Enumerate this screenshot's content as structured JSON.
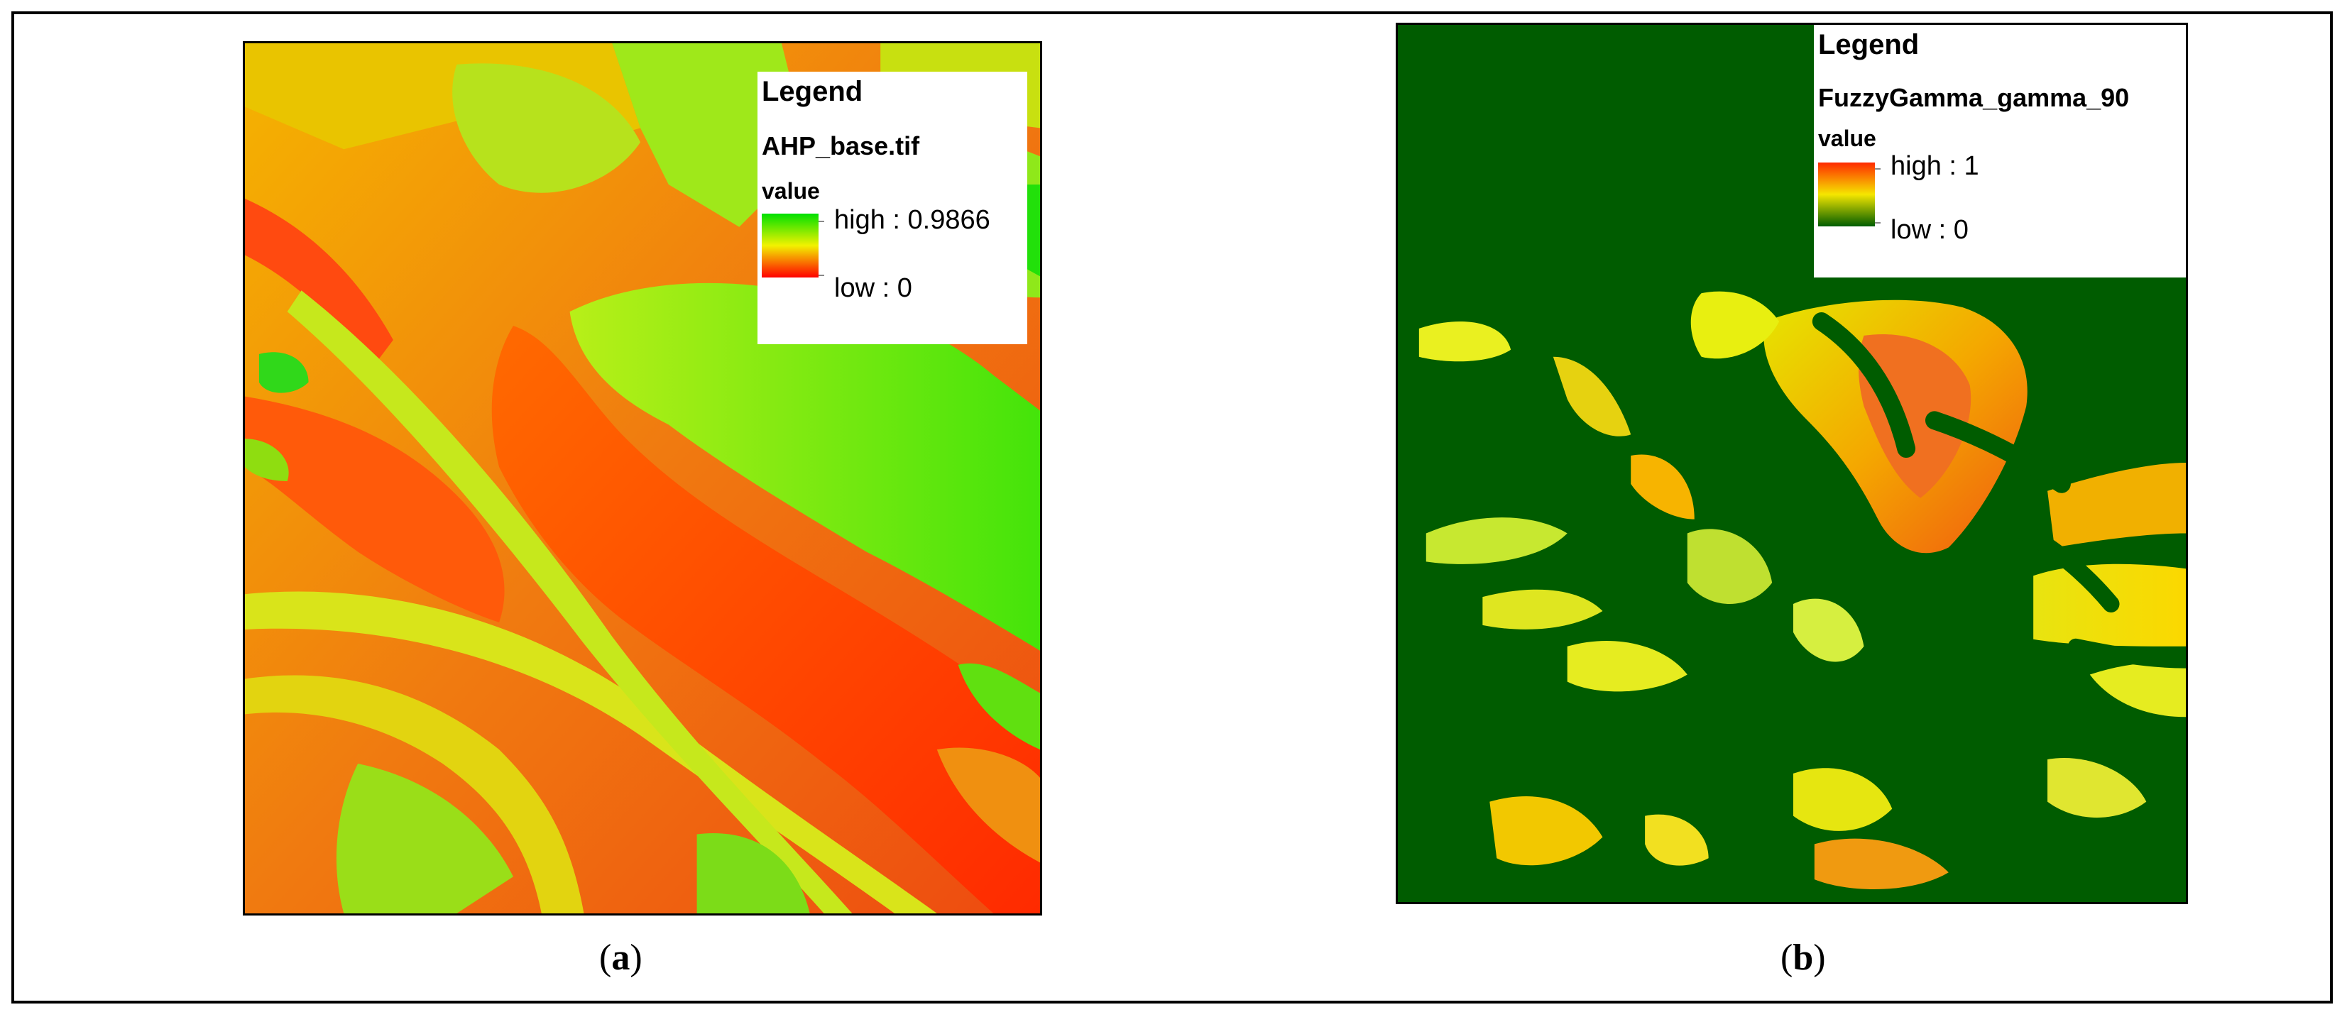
{
  "panel_a": {
    "caption_letter": "a",
    "legend": {
      "title": "Legend",
      "layer": "AHP_base.tif",
      "field": "value",
      "high_label": "high : 0.9866",
      "low_label": "low : 0",
      "ramp_colors": [
        "#00e000",
        "#f2f200",
        "#ff0000"
      ]
    }
  },
  "panel_b": {
    "caption_letter": "b",
    "legend": {
      "title": "Legend",
      "layer": "FuzzyGamma_gamma_90",
      "field": "value",
      "high_label": "high : 1",
      "low_label": "low : 0",
      "ramp_colors": [
        "#ff2a00",
        "#f5e600",
        "#005c00"
      ]
    }
  },
  "colors": {
    "frame": "#000000",
    "background_green": "#005c00"
  }
}
